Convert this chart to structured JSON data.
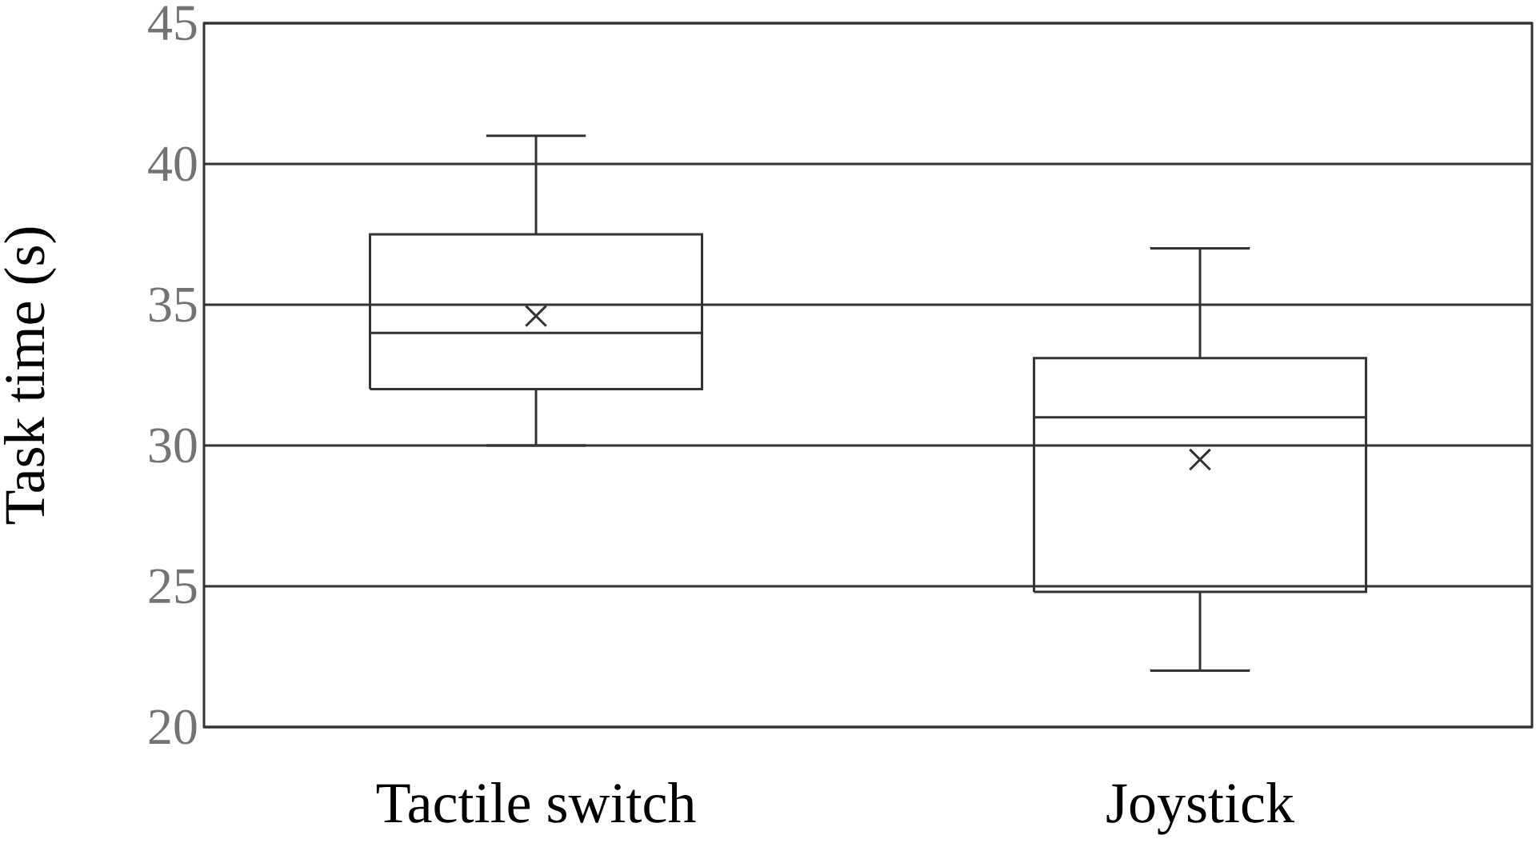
{
  "chart_data": {
    "type": "box",
    "ylabel": "Task time (s)",
    "categories": [
      "Tactile switch",
      "Joystick"
    ],
    "boxes": [
      {
        "low": 30,
        "q1": 32,
        "median": 34,
        "q3": 37.5,
        "high": 41,
        "mean": 34.6
      },
      {
        "low": 22,
        "q1": 24.8,
        "median": 31,
        "q3": 33.1,
        "high": 37,
        "mean": 29.5
      }
    ],
    "color": "#333333",
    "ylim": [
      20,
      45
    ],
    "yticks": [
      20,
      25,
      30,
      35,
      40,
      45
    ],
    "grid": "y"
  }
}
